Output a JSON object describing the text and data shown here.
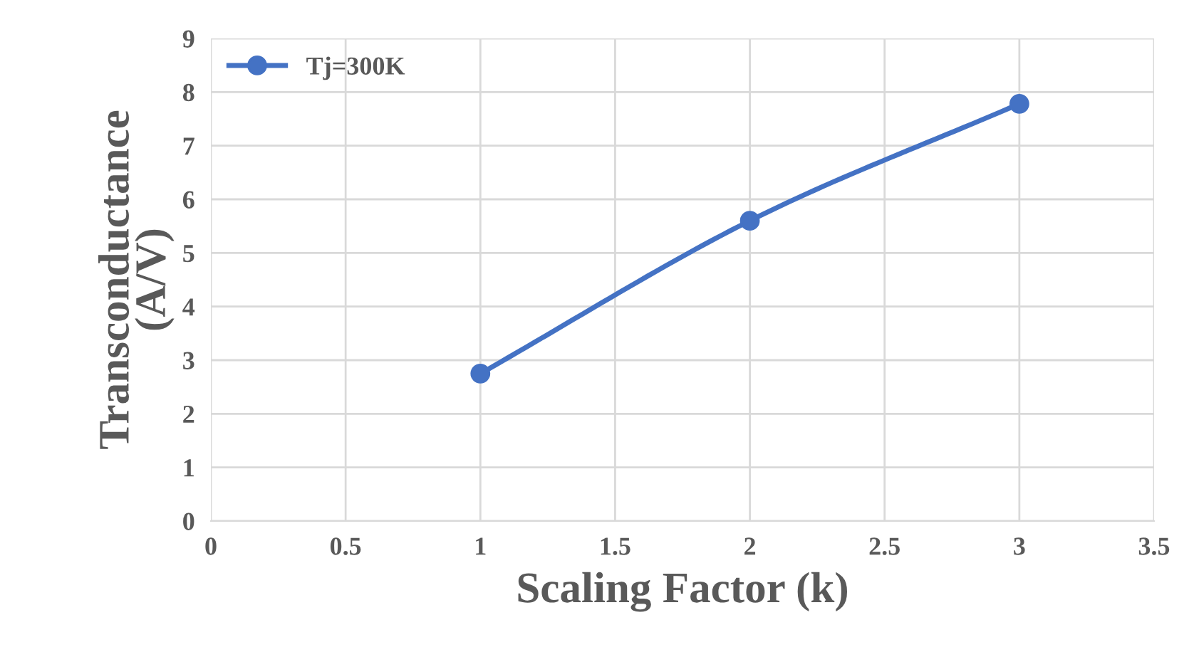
{
  "chart_data": {
    "type": "line",
    "xlabel": "Scaling Factor (k)",
    "ylabel": "Transconductance\n(A/V)",
    "x": [
      1,
      2,
      3
    ],
    "series": [
      {
        "name": "Tj=300K",
        "color": "#4472c4",
        "values": [
          2.75,
          5.6,
          7.78
        ]
      }
    ],
    "xlim": [
      0,
      3.5
    ],
    "xticks": [
      0,
      0.5,
      1,
      1.5,
      2,
      2.5,
      3,
      3.5
    ],
    "ylim": [
      0,
      9
    ],
    "yticks": [
      0,
      1,
      2,
      3,
      4,
      5,
      6,
      7,
      8,
      9
    ],
    "grid": true,
    "legend": "top left",
    "marker": "circle",
    "line_style": "solid"
  }
}
